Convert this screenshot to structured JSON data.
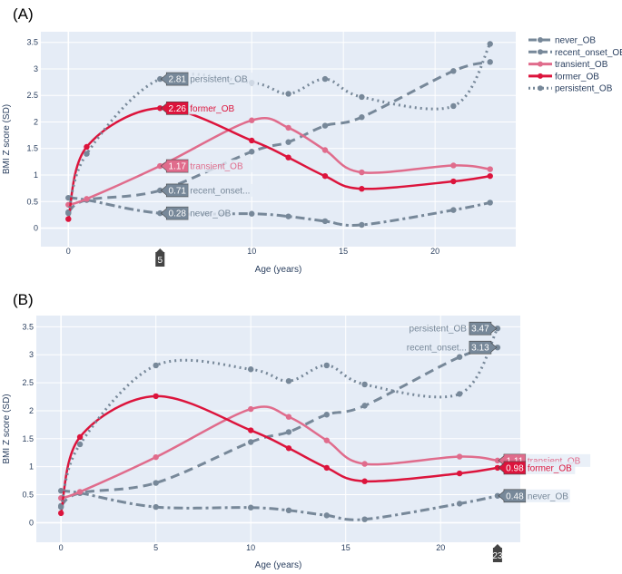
{
  "chart_data": [
    {
      "panel_label": "(A)",
      "type": "line",
      "xlabel": "Age (years)",
      "ylabel": "BMI Z score (SD)",
      "xlim": [
        -1.5,
        24.4
      ],
      "ylim": [
        -0.35,
        3.7
      ],
      "xticks": [
        0,
        10,
        15,
        20
      ],
      "yticks": [
        0,
        0.5,
        1,
        1.5,
        2,
        2.5,
        3,
        3.5
      ],
      "grid": true,
      "legend": "right",
      "hover_x": 5,
      "hover_x_label": "5",
      "hover_side": {
        "never_OB": "right",
        "recent_onset_OB": "right",
        "transient_OB": "right",
        "former_OB": "right",
        "persistent_OB": "right"
      }
    },
    {
      "panel_label": "(B)",
      "type": "line",
      "xlabel": "Age (years)",
      "ylabel": "BMI Z score (SD)",
      "xlim": [
        -1.3,
        24.2
      ],
      "ylim": [
        -0.35,
        3.7
      ],
      "xticks": [
        0,
        5,
        10,
        15,
        20
      ],
      "yticks": [
        0,
        0.5,
        1,
        1.5,
        2,
        2.5,
        3,
        3.5
      ],
      "grid": true,
      "legend": "none",
      "hover_x": 23,
      "hover_x_label": "23",
      "hover_side": {
        "never_OB": "right",
        "recent_onset_OB": "left",
        "transient_OB": "right",
        "former_OB": "right",
        "persistent_OB": "left"
      }
    }
  ],
  "x": [
    0,
    1,
    5,
    10,
    12,
    14,
    16,
    21,
    23
  ],
  "series": [
    {
      "name": "never_OB",
      "short": "never_OB",
      "color": "#778899",
      "dash": "10,4,3,4",
      "values": [
        0.57,
        0.53,
        0.28,
        0.27,
        0.22,
        0.13,
        0.06,
        0.34,
        0.48
      ]
    },
    {
      "name": "recent_onset_OB",
      "short": "recent_onset...",
      "color": "#778899",
      "dash": "10,6",
      "values": [
        0.3,
        0.53,
        0.71,
        1.44,
        1.62,
        1.93,
        2.09,
        2.96,
        3.13
      ]
    },
    {
      "name": "transient_OB",
      "short": "transient_OB",
      "color": "#e06c8c",
      "dash": "",
      "values": [
        0.44,
        0.55,
        1.17,
        2.03,
        1.89,
        1.47,
        1.05,
        1.18,
        1.11
      ]
    },
    {
      "name": "former_OB",
      "short": "former_OB",
      "color": "#dc143c",
      "dash": "",
      "values": [
        0.17,
        1.53,
        2.26,
        1.65,
        1.33,
        0.98,
        0.74,
        0.88,
        0.98
      ]
    },
    {
      "name": "persistent_OB",
      "short": "persistent_OB",
      "color": "#778899",
      "dash": "2,4",
      "values": [
        0.28,
        1.4,
        2.81,
        2.74,
        2.53,
        2.81,
        2.47,
        2.3,
        3.47
      ]
    }
  ]
}
